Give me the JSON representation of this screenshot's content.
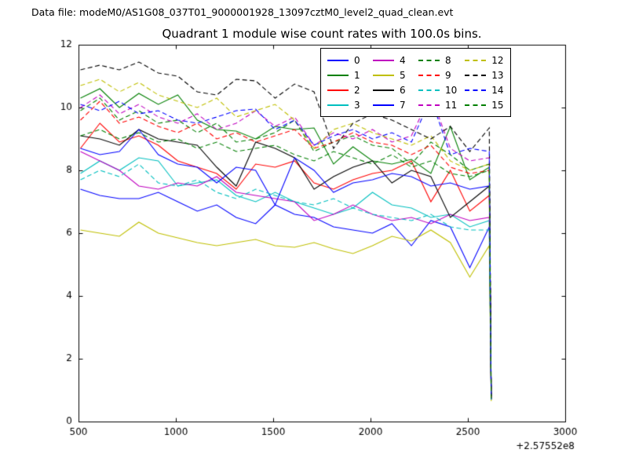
{
  "header": {
    "data_file_label": "Data file: modeM0/AS1G08_037T01_9000001928_13097cztM0_level2_quad_clean.evt"
  },
  "chart_data": {
    "type": "line",
    "title": "Quadrant 1 module wise count rates with 100.0s bins.",
    "xlabel": "",
    "ylabel": "",
    "x_offset_label": "+2.57552e8",
    "xlim": [
      500,
      3000
    ],
    "ylim": [
      0,
      12
    ],
    "x_ticks": [
      500,
      1000,
      1500,
      2000,
      2500,
      3000
    ],
    "y_ticks": [
      0,
      2,
      4,
      6,
      8,
      10,
      12
    ],
    "grid": false,
    "legend_position": "upper center",
    "legend_columns": [
      [
        0,
        1,
        2,
        3
      ],
      [
        4,
        5,
        6,
        7
      ],
      [
        8,
        9,
        10,
        11
      ],
      [
        12,
        13,
        14,
        15
      ]
    ],
    "x": [
      510,
      610,
      710,
      810,
      910,
      1010,
      1110,
      1210,
      1310,
      1410,
      1510,
      1610,
      1710,
      1810,
      1910,
      2010,
      2110,
      2210,
      2310,
      2410,
      2510,
      2610,
      2620
    ],
    "series": [
      {
        "name": "0",
        "color": "#0000ff",
        "dash": false,
        "values": [
          7.4,
          7.2,
          7.1,
          7.1,
          7.3,
          7.0,
          6.7,
          6.9,
          6.5,
          6.3,
          6.9,
          6.6,
          6.5,
          6.2,
          6.1,
          6.0,
          6.3,
          5.6,
          6.4,
          6.2,
          4.9,
          6.2,
          0.7
        ]
      },
      {
        "name": "1",
        "color": "#007f00",
        "dash": false,
        "values": [
          10.3,
          10.6,
          10.0,
          10.45,
          10.1,
          10.4,
          9.6,
          9.3,
          9.25,
          9.0,
          9.4,
          9.3,
          9.35,
          8.2,
          8.75,
          8.3,
          8.2,
          8.35,
          7.9,
          9.4,
          7.7,
          8.1,
          0.75
        ]
      },
      {
        "name": "2",
        "color": "#ff0000",
        "dash": false,
        "values": [
          8.7,
          9.5,
          8.9,
          9.1,
          8.8,
          8.3,
          8.1,
          7.9,
          7.4,
          8.2,
          8.1,
          8.3,
          7.6,
          7.4,
          7.7,
          7.9,
          8.0,
          8.3,
          7.0,
          8.0,
          6.7,
          7.2,
          0.7
        ]
      },
      {
        "name": "3",
        "color": "#00bfbf",
        "dash": false,
        "values": [
          7.9,
          8.3,
          8.0,
          8.4,
          8.3,
          7.5,
          7.6,
          7.7,
          7.2,
          7.0,
          7.3,
          7.0,
          6.8,
          6.6,
          6.8,
          7.3,
          6.9,
          6.8,
          6.5,
          6.6,
          6.2,
          6.4,
          0.7
        ]
      },
      {
        "name": "4",
        "color": "#bf00bf",
        "dash": false,
        "values": [
          8.6,
          8.3,
          8.0,
          7.5,
          7.4,
          7.6,
          7.5,
          7.8,
          7.3,
          7.2,
          7.1,
          7.0,
          6.4,
          6.6,
          6.9,
          6.6,
          6.4,
          6.5,
          6.3,
          6.6,
          6.4,
          6.5,
          0.7
        ]
      },
      {
        "name": "5",
        "color": "#bfbf00",
        "dash": false,
        "values": [
          6.1,
          6.0,
          5.9,
          6.35,
          6.0,
          5.85,
          5.7,
          5.6,
          5.7,
          5.8,
          5.6,
          5.55,
          5.7,
          5.5,
          5.35,
          5.6,
          5.9,
          5.75,
          6.1,
          5.7,
          4.6,
          5.6,
          0.65
        ]
      },
      {
        "name": "6",
        "color": "#000000",
        "dash": false,
        "values": [
          9.1,
          9.0,
          8.8,
          9.3,
          9.0,
          8.9,
          8.8,
          8.1,
          7.5,
          8.9,
          8.7,
          8.4,
          7.4,
          7.8,
          8.1,
          8.3,
          7.6,
          8.0,
          7.8,
          6.5,
          7.0,
          7.5,
          0.75
        ]
      },
      {
        "name": "7",
        "color": "#0000ff",
        "dash": false,
        "values": [
          8.7,
          8.5,
          8.6,
          9.3,
          8.5,
          8.2,
          8.1,
          7.6,
          8.1,
          8.0,
          6.9,
          8.4,
          8.0,
          7.3,
          7.6,
          7.7,
          7.9,
          7.8,
          7.5,
          7.6,
          7.4,
          7.5,
          0.7
        ]
      },
      {
        "name": "8",
        "color": "#007f00",
        "dash": true,
        "values": [
          9.9,
          10.3,
          9.6,
          9.9,
          9.5,
          9.6,
          9.2,
          9.5,
          8.9,
          9.0,
          9.2,
          9.6,
          8.6,
          8.9,
          9.1,
          8.8,
          8.7,
          8.2,
          8.9,
          8.5,
          8.0,
          8.2,
          0.75
        ]
      },
      {
        "name": "9",
        "color": "#ff0000",
        "dash": true,
        "values": [
          9.6,
          10.2,
          9.5,
          9.7,
          9.4,
          9.2,
          9.5,
          9.0,
          9.2,
          8.9,
          9.1,
          9.3,
          8.7,
          8.9,
          9.2,
          8.9,
          8.8,
          8.5,
          8.8,
          8.1,
          7.9,
          8.0,
          0.7
        ]
      },
      {
        "name": "10",
        "color": "#00bfbf",
        "dash": true,
        "values": [
          7.7,
          8.0,
          7.8,
          8.2,
          7.6,
          7.5,
          7.7,
          7.3,
          7.1,
          7.4,
          7.2,
          7.0,
          6.9,
          7.1,
          6.8,
          6.6,
          6.5,
          6.4,
          6.6,
          6.2,
          6.1,
          6.1,
          0.7
        ]
      },
      {
        "name": "11",
        "color": "#bf00bf",
        "dash": true,
        "values": [
          10.0,
          10.4,
          9.8,
          10.1,
          9.7,
          9.5,
          9.8,
          9.3,
          9.5,
          9.9,
          9.4,
          9.7,
          8.8,
          9.2,
          9.0,
          9.3,
          8.9,
          9.1,
          10.4,
          8.7,
          8.3,
          8.4,
          0.75
        ]
      },
      {
        "name": "12",
        "color": "#bfbf00",
        "dash": true,
        "values": [
          10.7,
          10.9,
          10.5,
          10.8,
          10.4,
          10.2,
          10.0,
          10.3,
          9.7,
          9.9,
          10.1,
          9.6,
          8.7,
          9.3,
          9.5,
          9.2,
          9.0,
          8.8,
          9.1,
          8.3,
          8.0,
          8.2,
          0.75
        ]
      },
      {
        "name": "13",
        "color": "#000000",
        "dash": true,
        "values": [
          11.2,
          11.35,
          11.2,
          11.45,
          11.1,
          11.0,
          10.5,
          10.4,
          10.9,
          10.85,
          10.3,
          10.75,
          10.5,
          8.7,
          9.5,
          9.8,
          9.6,
          9.3,
          9.0,
          9.4,
          8.6,
          9.35,
          0.8
        ]
      },
      {
        "name": "14",
        "color": "#0000ff",
        "dash": true,
        "values": [
          10.1,
          9.9,
          10.2,
          9.8,
          9.9,
          9.6,
          9.5,
          9.7,
          9.9,
          9.95,
          9.3,
          9.6,
          8.8,
          9.1,
          9.3,
          9.0,
          9.2,
          8.9,
          10.3,
          8.5,
          8.7,
          8.6,
          0.75
        ]
      },
      {
        "name": "15",
        "color": "#007f00",
        "dash": true,
        "values": [
          9.1,
          9.3,
          9.0,
          9.2,
          8.9,
          9.0,
          8.7,
          8.9,
          8.6,
          8.7,
          8.8,
          8.5,
          8.3,
          8.6,
          8.4,
          8.2,
          8.5,
          8.1,
          8.3,
          7.9,
          7.8,
          8.0,
          0.7
        ]
      }
    ]
  }
}
